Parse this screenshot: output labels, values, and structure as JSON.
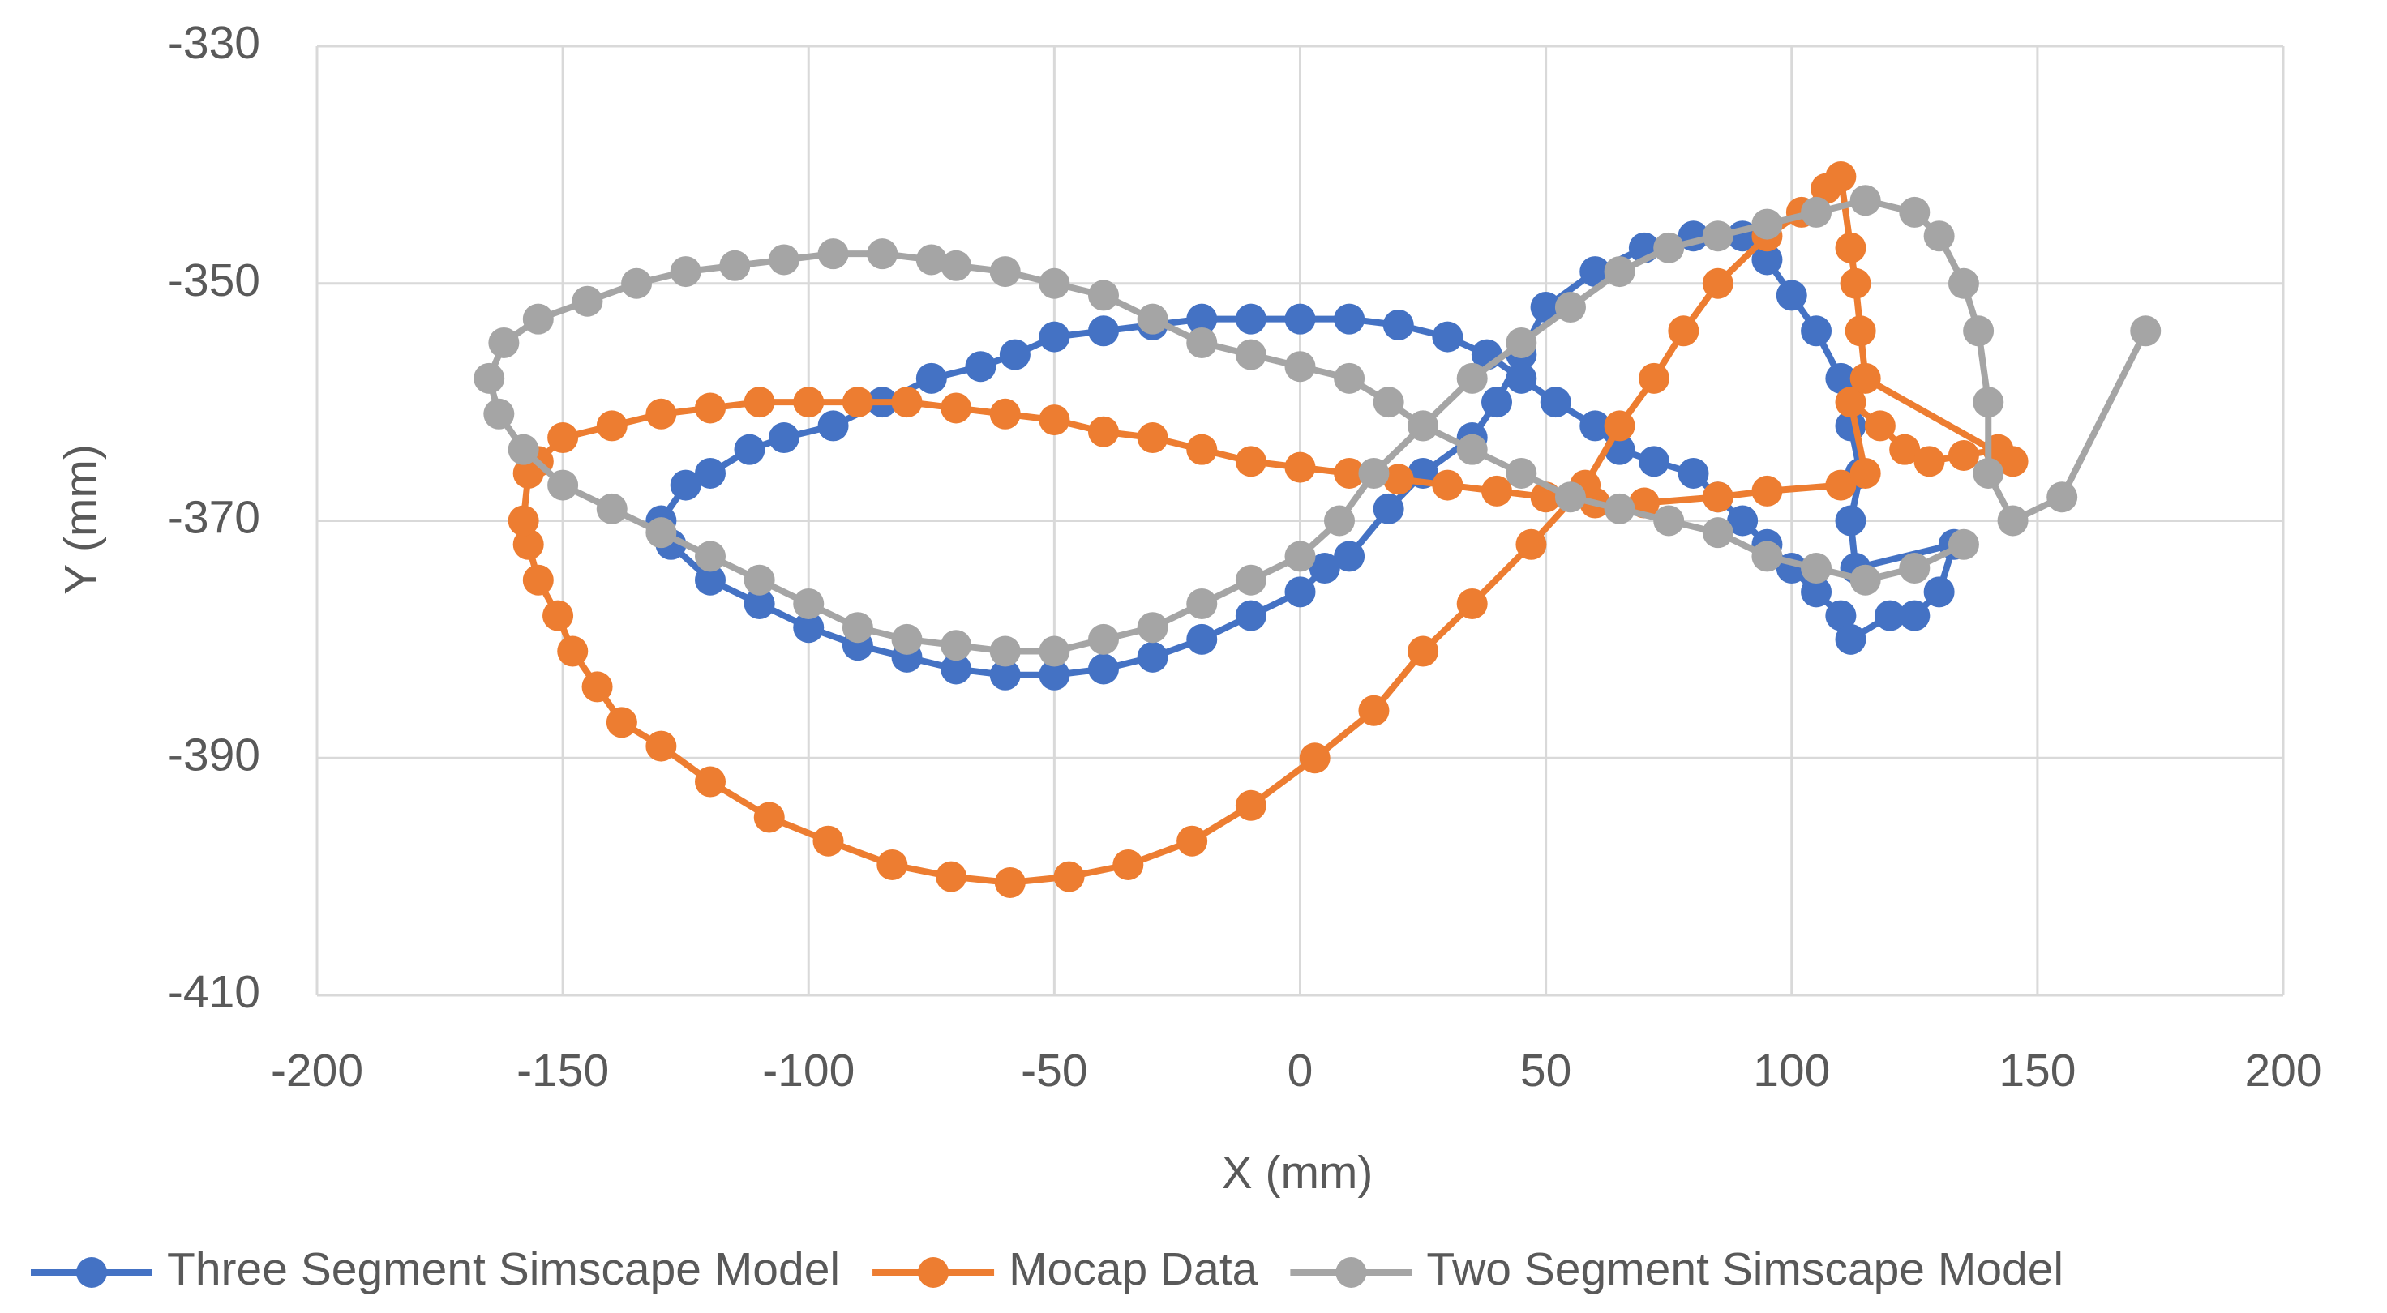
{
  "chart_data": {
    "type": "scatter_line",
    "xlabel": "X (mm)",
    "ylabel": "Y (mm)",
    "xlim": [
      -200,
      200
    ],
    "xticks": [
      -200,
      -150,
      -100,
      -50,
      0,
      50,
      100,
      150,
      200
    ],
    "ylim": [
      -410,
      -330
    ],
    "yticks": [
      -330,
      -350,
      -370,
      -390,
      -410
    ],
    "grid": true,
    "legend": "bottom",
    "series": [
      {
        "name": "Three Segment Simscape Model",
        "color": "#4472c4",
        "x": [
          -130,
          -125,
          -120,
          -112,
          -105,
          -95,
          -85,
          -75,
          -65,
          -58,
          -50,
          -40,
          -30,
          -20,
          -10,
          0,
          10,
          20,
          30,
          38,
          45,
          52,
          60,
          65,
          72,
          80,
          85,
          90,
          95,
          100,
          105,
          110,
          112,
          120,
          125,
          130,
          133,
          113,
          112,
          114,
          112,
          110,
          105,
          100,
          95,
          90,
          80,
          70,
          60,
          50,
          45,
          40,
          35,
          25,
          18,
          10,
          5,
          0,
          -10,
          -20,
          -30,
          -40,
          -50,
          -60,
          -70,
          -80,
          -90,
          -100,
          -110,
          -120,
          -128
        ],
        "y": [
          -370,
          -367,
          -366,
          -364,
          -363,
          -362,
          -360,
          -358,
          -357,
          -356,
          -354.5,
          -354,
          -353.5,
          -353,
          -353,
          -353,
          -353,
          -353.5,
          -354.5,
          -356,
          -358,
          -360,
          -362,
          -364,
          -365,
          -366,
          -368,
          -370,
          -372,
          -374,
          -376,
          -378,
          -380,
          -378,
          -378,
          -376,
          -372,
          -374,
          -370,
          -366,
          -362,
          -358,
          -354,
          -351,
          -348,
          -346,
          -346,
          -347,
          -349,
          -352,
          -356,
          -360,
          -363,
          -366,
          -369,
          -373,
          -374,
          -376,
          -378,
          -380,
          -381.5,
          -382.5,
          -383,
          -383,
          -382.5,
          -381.5,
          -380.5,
          -379,
          -377,
          -375,
          -372
        ]
      },
      {
        "name": "Mocap Data",
        "color": "#ed7d31",
        "x": [
          -155,
          -150,
          -140,
          -130,
          -120,
          -110,
          -100,
          -90,
          -80,
          -70,
          -60,
          -50,
          -40,
          -30,
          -20,
          -10,
          0,
          10,
          20,
          30,
          40,
          50,
          60,
          70,
          85,
          95,
          110,
          115,
          112,
          118,
          123,
          128,
          135,
          142,
          145,
          115,
          114,
          113,
          112,
          110,
          107,
          102,
          95,
          85,
          78,
          72,
          65,
          58,
          47,
          35,
          25,
          15,
          3,
          -10,
          -22,
          -35,
          -47,
          -59,
          -71,
          -83,
          -96,
          -108,
          -120,
          -130,
          -138,
          -143,
          -148,
          -151,
          -155,
          -157,
          -158,
          -157
        ],
        "y": [
          -365,
          -363,
          -362,
          -361,
          -360.5,
          -360,
          -360,
          -360,
          -360,
          -360.5,
          -361,
          -361.5,
          -362.5,
          -363,
          -364,
          -365,
          -365.5,
          -366,
          -366.5,
          -367,
          -367.5,
          -368,
          -368.5,
          -368.5,
          -368,
          -367.5,
          -367,
          -366,
          -360,
          -362,
          -364,
          -365,
          -364.5,
          -364,
          -365,
          -358,
          -354,
          -350,
          -347,
          -341,
          -342,
          -344,
          -346,
          -350,
          -354,
          -358,
          -362,
          -367,
          -372,
          -377,
          -381,
          -386,
          -390,
          -394,
          -397,
          -399,
          -400,
          -400.5,
          -400,
          -399,
          -397,
          -395,
          -392,
          -389,
          -387,
          -384,
          -381,
          -378,
          -375,
          -372,
          -370,
          -366
        ]
      },
      {
        "name": "Two Segment Simscape Model",
        "color": "#a5a5a5",
        "x": [
          172,
          155,
          145,
          140,
          140,
          138,
          135,
          130,
          125,
          115,
          105,
          95,
          85,
          75,
          65,
          55,
          45,
          35,
          25,
          15,
          8,
          0,
          -10,
          -20,
          -30,
          -40,
          -50,
          -60,
          -70,
          -80,
          -90,
          -100,
          -110,
          -120,
          -130,
          -140,
          -150,
          -158,
          -163,
          -165,
          -162,
          -155,
          -145,
          -135,
          -125,
          -115,
          -105,
          -95,
          -85,
          -75,
          -70,
          -60,
          -50,
          -40,
          -30,
          -20,
          -10,
          0,
          10,
          18,
          25,
          35,
          45,
          55,
          65,
          75,
          85,
          95,
          105,
          115,
          125,
          135
        ],
        "y": [
          -354,
          -368,
          -370,
          -366,
          -360,
          -354,
          -350,
          -346,
          -344,
          -343,
          -344,
          -345,
          -346,
          -347,
          -349,
          -352,
          -355,
          -358,
          -362,
          -366,
          -370,
          -373,
          -375,
          -377,
          -379,
          -380,
          -381,
          -381,
          -380.5,
          -380,
          -379,
          -377,
          -375,
          -373,
          -371,
          -369,
          -367,
          -364,
          -361,
          -358,
          -355,
          -353,
          -351.5,
          -350,
          -349,
          -348.5,
          -348,
          -347.5,
          -347.5,
          -348,
          -348.5,
          -349,
          -350,
          -351,
          -353,
          -355,
          -356,
          -357,
          -358,
          -360,
          -362,
          -364,
          -366,
          -368,
          -369,
          -370,
          -371,
          -373,
          -374,
          -375,
          -374,
          -372
        ]
      }
    ]
  }
}
